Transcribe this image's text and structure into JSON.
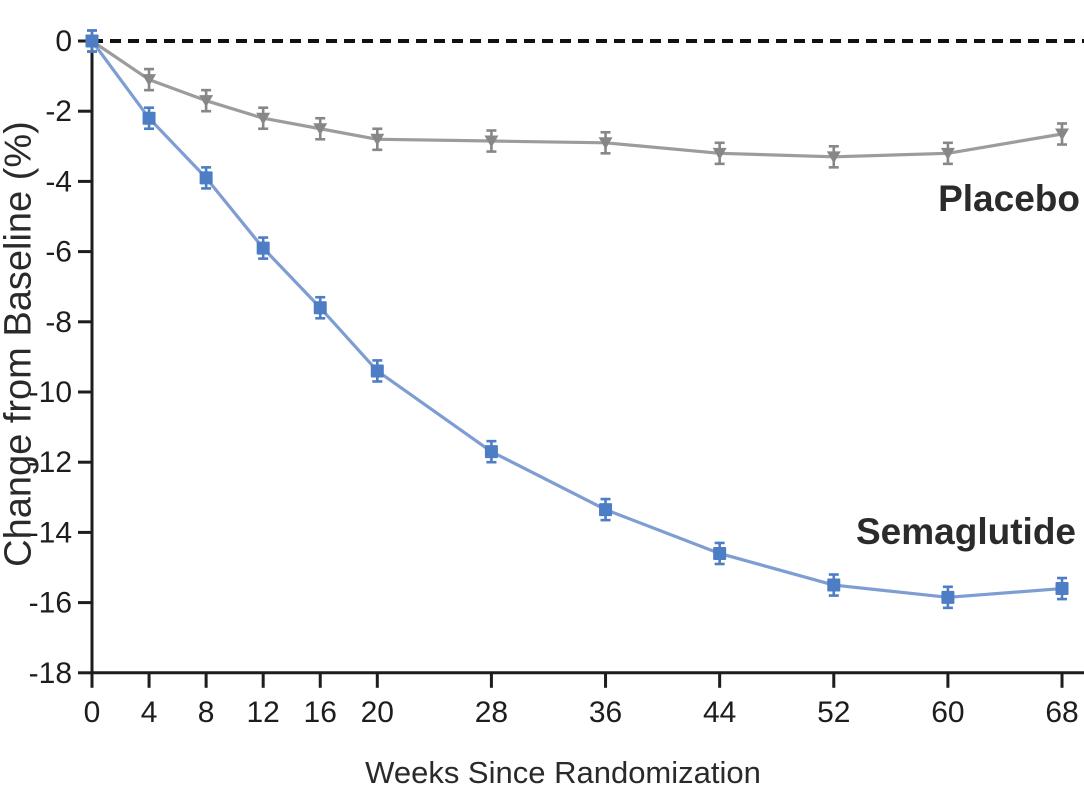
{
  "figure": {
    "background": "#ffffff"
  },
  "chart_data": {
    "type": "line",
    "x": [
      0,
      4,
      8,
      12,
      16,
      20,
      28,
      36,
      44,
      52,
      60,
      68
    ],
    "x_tick_labels": [
      "0",
      "4",
      "8",
      "12",
      "16",
      "20",
      "28",
      "36",
      "44",
      "52",
      "60",
      "68"
    ],
    "y_ticks": [
      0,
      -2,
      -4,
      -6,
      -8,
      -10,
      -12,
      -14,
      -16,
      -18
    ],
    "y_tick_labels": [
      "0",
      "-2",
      "-4",
      "-6",
      "-8",
      "-10",
      "-12",
      "-14",
      "-16",
      "-18"
    ],
    "xlim": [
      0,
      69.5
    ],
    "ylim": [
      -18,
      1.2
    ],
    "xlabel": "Weeks Since Randomization",
    "ylabel": "Change from Baseline (%)",
    "grid": false,
    "legend_position": "inline-labels-right",
    "reference_line": {
      "y": 0,
      "style": "dashed",
      "color": "#111111"
    },
    "series": [
      {
        "name": "Placebo",
        "marker": "triangle-down",
        "line_color": "#9c9c9c",
        "marker_color": "#878787",
        "error_bar": 0.3,
        "values": [
          0,
          -1.1,
          -1.7,
          -2.2,
          -2.5,
          -2.8,
          -2.85,
          -2.9,
          -3.2,
          -3.3,
          -3.2,
          -2.65
        ]
      },
      {
        "name": "Semaglutide",
        "marker": "square",
        "line_color": "#7e9dd3",
        "marker_color": "#4d7dc4",
        "error_bar": 0.3,
        "values": [
          0,
          -2.2,
          -3.9,
          -5.9,
          -7.6,
          -9.4,
          -11.7,
          -13.35,
          -14.6,
          -15.5,
          -15.85,
          -15.6
        ]
      }
    ],
    "axis_color": "#1d1d1d",
    "tick_label_color": "#1d1d1d"
  }
}
